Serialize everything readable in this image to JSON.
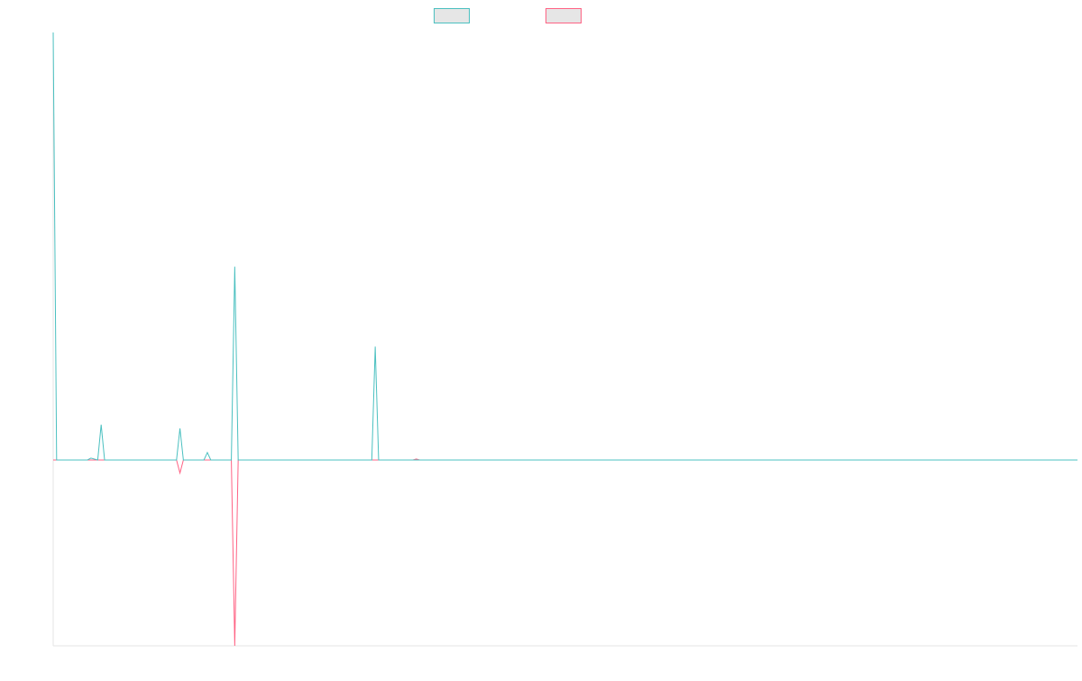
{
  "chart_data": {
    "type": "line",
    "title": "",
    "xlabel": "",
    "ylabel": "",
    "grid": false,
    "legend_position": "top-center",
    "x": [
      0,
      1,
      2,
      3,
      4,
      5,
      6,
      7,
      8,
      9,
      10,
      11,
      12,
      13,
      14,
      15,
      16,
      17,
      18,
      19,
      20,
      21,
      22,
      23,
      24,
      25,
      26,
      27,
      28,
      29,
      30,
      31,
      32,
      33,
      34,
      35,
      36,
      37,
      38,
      39,
      40,
      41,
      42,
      43,
      44,
      45,
      46,
      47,
      48,
      49,
      50,
      51,
      52,
      53,
      54,
      55,
      56,
      57,
      58,
      59,
      60,
      61,
      62,
      63,
      64,
      65,
      66,
      67,
      68,
      69,
      70,
      71,
      72,
      73,
      74,
      75,
      76,
      77,
      78,
      79,
      80,
      81,
      82,
      83,
      84,
      85,
      86,
      87,
      88,
      89,
      90,
      91,
      92,
      93,
      94,
      95,
      96,
      97,
      98,
      99,
      100,
      101,
      102,
      103,
      104,
      105,
      106,
      107,
      108,
      109,
      110,
      111,
      112,
      113,
      114,
      115,
      116,
      117,
      118,
      119,
      120,
      121,
      122,
      123,
      124,
      125,
      126,
      127,
      128,
      129,
      130,
      131,
      132,
      133,
      134,
      135,
      136,
      137,
      138,
      139,
      140,
      141,
      142,
      143,
      144,
      145,
      146,
      147,
      148,
      149,
      150,
      151,
      152,
      153,
      154,
      155,
      156,
      157,
      158,
      159,
      160,
      161,
      162,
      163,
      164,
      165,
      166,
      167,
      168,
      169,
      170,
      171,
      172,
      173,
      174,
      175,
      176,
      177,
      178,
      179,
      180,
      181,
      182,
      183,
      184,
      185,
      186,
      187,
      188,
      189,
      190,
      191,
      192,
      193,
      194,
      195,
      196,
      197,
      198,
      199,
      200,
      201,
      202,
      203,
      204,
      205,
      206,
      207,
      208,
      209,
      210,
      211,
      212,
      213,
      214,
      215,
      216,
      217,
      218,
      219,
      220,
      221,
      222,
      223,
      224,
      225,
      226,
      227,
      228,
      229,
      230,
      231,
      232,
      233,
      234,
      235,
      236,
      237,
      238,
      239,
      240,
      241,
      242,
      243,
      244,
      245,
      246,
      247,
      248,
      249,
      250,
      251,
      252,
      253,
      254,
      255,
      256,
      257,
      258,
      259,
      260,
      261,
      262,
      263,
      264,
      265,
      266,
      267,
      268,
      269,
      270,
      271,
      272,
      273,
      274,
      275,
      276,
      277,
      278,
      279,
      280,
      281,
      282,
      283,
      284,
      285,
      286,
      287,
      288,
      289,
      290,
      291,
      292,
      293,
      294,
      295,
      296,
      297,
      298,
      299
    ],
    "ylim": [
      -100,
      230
    ],
    "series": [
      {
        "color": "#4bc0c0",
        "points": [
          [
            0,
            230
          ],
          [
            1,
            0
          ],
          [
            10,
            0
          ],
          [
            11,
            1
          ],
          [
            13,
            0
          ],
          [
            14,
            19
          ],
          [
            15,
            0
          ],
          [
            36,
            0
          ],
          [
            37,
            17
          ],
          [
            38,
            0
          ],
          [
            44,
            0
          ],
          [
            45,
            4
          ],
          [
            46,
            0
          ],
          [
            52,
            0
          ],
          [
            53,
            104
          ],
          [
            54,
            0
          ],
          [
            93,
            0
          ],
          [
            94,
            61
          ],
          [
            95,
            0
          ],
          [
            299,
            0
          ]
        ]
      },
      {
        "color": "#ff6384",
        "points": [
          [
            0,
            0
          ],
          [
            36,
            0
          ],
          [
            37,
            -7
          ],
          [
            38,
            0
          ],
          [
            52,
            0
          ],
          [
            53,
            -100
          ],
          [
            54,
            0
          ],
          [
            105,
            0
          ],
          [
            106,
            0.5
          ],
          [
            107,
            0
          ],
          [
            299,
            0
          ]
        ]
      }
    ]
  }
}
